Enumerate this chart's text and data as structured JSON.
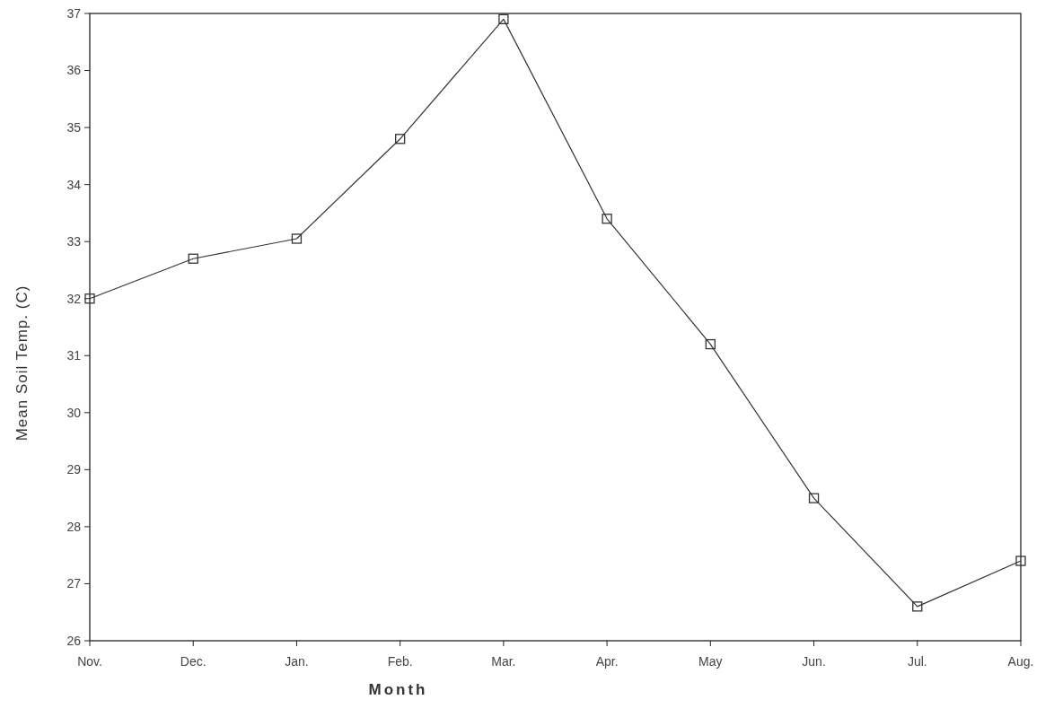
{
  "chart_data": {
    "type": "line",
    "xlabel": "Month",
    "ylabel": "Mean Soil Temp. (C)",
    "categories": [
      "Nov.",
      "Dec.",
      "Jan.",
      "Feb.",
      "Mar.",
      "Apr.",
      "May",
      "Jun.",
      "Jul.",
      "Aug."
    ],
    "series": [
      {
        "color": "#333333",
        "values": [
          32.0,
          32.7,
          33.05,
          34.8,
          36.9,
          33.4,
          31.2,
          28.5,
          26.6,
          27.4
        ]
      }
    ],
    "ylim": [
      26,
      37
    ],
    "yticks": [
      26,
      27,
      28,
      29,
      30,
      31,
      32,
      33,
      34,
      35,
      36,
      37
    ],
    "grid": false,
    "marker": "square",
    "line_style": "solid"
  }
}
